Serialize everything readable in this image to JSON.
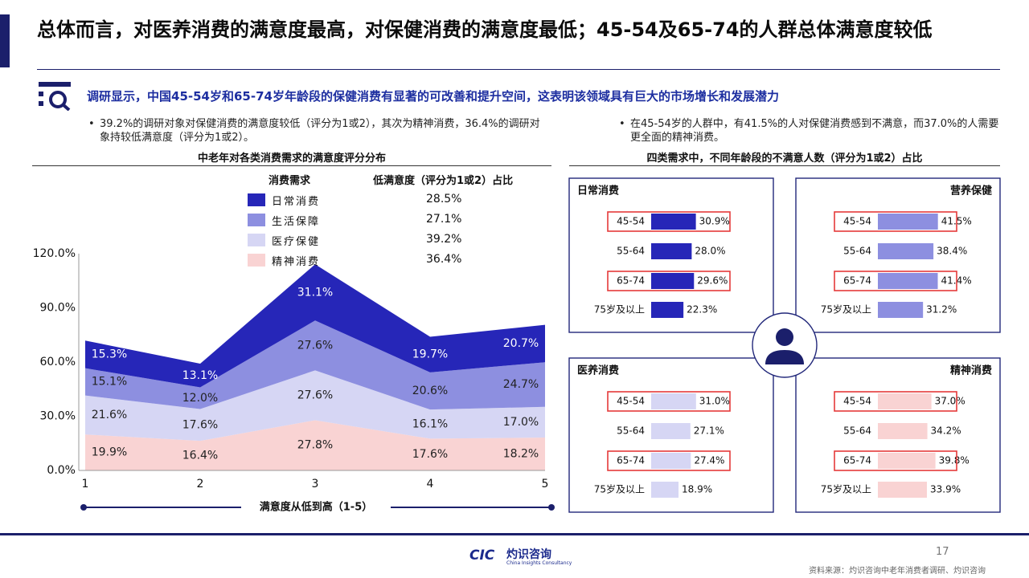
{
  "title": "总体而言，对医养消费的满意度最高，对保健消费的满意度最低；45-54及65-74的人群总体满意度较低",
  "subtitle": "调研显示，中国45-54岁和65-74岁年龄段的保健消费有显著的可改善和提升空间，这表明该领域具有巨大的市场增长和发展潜力",
  "bullets": {
    "left": "39.2%的调研对象对保健消费的满意度较低（评分为1或2），其次为精神消费，36.4%的调研对象持较低满意度（评分为1或2）。",
    "right": "在45-54岁的人群中，有41.5%的人对保健消费感到不满意，而37.0%的人需要更全面的精神消费。"
  },
  "bullet_marker": "•",
  "section_left_title": "中老年对各类消费需求的满意度评分分布",
  "section_right_title": "四类需求中，不同年龄段的不满意人数（评分为1或2）占比",
  "legend": {
    "col1": "消费需求",
    "col2": "低满意度（评分为1或2）占比",
    "items": [
      {
        "name": "日常消费",
        "value": "28.5%"
      },
      {
        "name": "生活保障",
        "value": "27.1%"
      },
      {
        "name": "医疗保健",
        "value": "39.2%"
      },
      {
        "name": "精神消费",
        "value": "36.4%"
      }
    ]
  },
  "colors": {
    "navy": "#1b1f6b",
    "daily": "#2626b8",
    "life": "#8d8fe0",
    "medical": "#d6d6f4",
    "spirit": "#f9d3d3",
    "highlight": "#e53a3a",
    "subtitle": "#1d2ea0"
  },
  "chart_data": [
    {
      "type": "area",
      "stacked": true,
      "x": [
        1,
        2,
        3,
        4,
        5
      ],
      "xlabel": "满意度从低到高（1-5）",
      "ylabel": "",
      "ylim": [
        0,
        120
      ],
      "yticks": [
        "0.0%",
        "30.0%",
        "60.0%",
        "90.0%",
        "120.0%"
      ],
      "grid": false,
      "series": [
        {
          "name": "精神消费",
          "values": [
            19.9,
            16.4,
            27.8,
            17.6,
            18.2
          ],
          "labels": [
            "19.9%",
            "16.4%",
            "27.8%",
            "17.6%",
            "18.2%"
          ]
        },
        {
          "name": "医疗保健",
          "values": [
            21.6,
            17.6,
            27.6,
            16.1,
            17.0
          ],
          "labels": [
            "21.6%",
            "17.6%",
            "27.6%",
            "16.1%",
            "17.0%"
          ]
        },
        {
          "name": "生活保障",
          "values": [
            15.1,
            12.0,
            27.6,
            20.6,
            24.7
          ],
          "labels": [
            "15.1%",
            "12.0%",
            "27.6%",
            "20.6%",
            "24.7%"
          ]
        },
        {
          "name": "日常消费",
          "values": [
            15.3,
            13.1,
            31.1,
            19.7,
            20.7
          ],
          "labels": [
            "15.3%",
            "13.1%",
            "31.1%",
            "19.7%",
            "20.7%"
          ]
        }
      ]
    },
    {
      "type": "bar",
      "orientation": "horizontal",
      "panels": [
        {
          "title": "日常消费",
          "color": "daily",
          "categories": [
            "45-54",
            "55-64",
            "65-74",
            "75岁及以上"
          ],
          "values": [
            30.9,
            28.0,
            29.6,
            22.3
          ],
          "labels": [
            "30.9%",
            "28.0%",
            "29.6%",
            "22.3%"
          ],
          "highlight": [
            0,
            2
          ]
        },
        {
          "title": "营养保健",
          "color": "life",
          "categories": [
            "45-54",
            "55-64",
            "65-74",
            "75岁及以上"
          ],
          "values": [
            41.5,
            38.4,
            41.4,
            31.2
          ],
          "labels": [
            "41.5%",
            "38.4%",
            "41.4%",
            "31.2%"
          ],
          "highlight": [
            0,
            2
          ]
        },
        {
          "title": "医养消费",
          "color": "medical",
          "categories": [
            "45-54",
            "55-64",
            "65-74",
            "75岁及以上"
          ],
          "values": [
            31.0,
            27.1,
            27.4,
            18.9
          ],
          "labels": [
            "31.0%",
            "27.1%",
            "27.4%",
            "18.9%"
          ],
          "highlight": [
            0,
            2
          ]
        },
        {
          "title": "精神消费",
          "color": "spirit",
          "categories": [
            "45-54",
            "55-64",
            "65-74",
            "75岁及以上"
          ],
          "values": [
            37.0,
            34.2,
            39.8,
            33.9
          ],
          "labels": [
            "37.0%",
            "34.2%",
            "39.8%",
            "33.9%"
          ],
          "highlight": [
            0,
            2
          ]
        }
      ]
    }
  ],
  "footer": {
    "logo_text": "CIC",
    "logo_cn": "灼识咨询",
    "logo_en": "China Insights Consultancy",
    "page_number": "17",
    "source": "资料来源：灼识咨询中老年消费者调研、灼识咨询"
  }
}
